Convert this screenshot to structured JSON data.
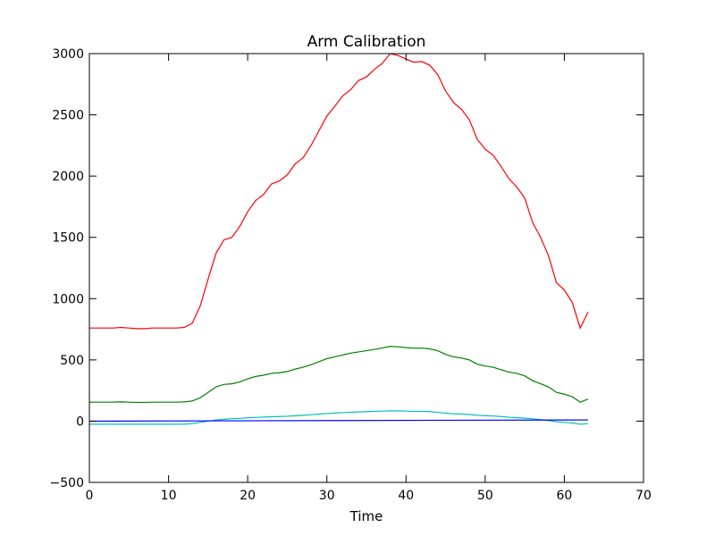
{
  "chart_data": {
    "type": "line",
    "title": "Arm Calibration",
    "xlabel": "Time",
    "ylabel": "",
    "xlim": [
      0,
      70
    ],
    "ylim": [
      -500,
      3000
    ],
    "xticks": [
      0,
      10,
      20,
      30,
      40,
      50,
      60,
      70
    ],
    "yticks": [
      -500,
      0,
      500,
      1000,
      1500,
      2000,
      2500,
      3000
    ],
    "tick_labels_x": [
      "0",
      "10",
      "20",
      "30",
      "40",
      "50",
      "60",
      "70"
    ],
    "tick_labels_y": [
      "−500",
      "0",
      "500",
      "1000",
      "1500",
      "2000",
      "2500",
      "3000"
    ],
    "grid": false,
    "legend": "none",
    "series": [
      {
        "color": "#ff0000",
        "x": [
          0,
          1,
          2,
          3,
          4,
          5,
          6,
          7,
          8,
          9,
          10,
          11,
          12,
          13,
          14,
          15,
          16,
          17,
          18,
          19,
          20,
          21,
          22,
          23,
          24,
          25,
          26,
          27,
          28,
          29,
          30,
          31,
          32,
          33,
          34,
          35,
          36,
          37,
          38,
          39,
          40,
          41,
          42,
          43,
          44,
          45,
          46,
          47,
          48,
          49,
          50,
          51,
          52,
          53,
          54,
          55,
          56,
          57,
          58,
          59,
          60,
          61,
          62,
          63
        ],
        "values": [
          760,
          760,
          760,
          760,
          765,
          760,
          755,
          755,
          760,
          760,
          760,
          760,
          765,
          800,
          940,
          1160,
          1370,
          1480,
          1500,
          1590,
          1710,
          1800,
          1850,
          1935,
          1960,
          2010,
          2100,
          2150,
          2250,
          2370,
          2490,
          2570,
          2655,
          2705,
          2780,
          2810,
          2870,
          2920,
          3000,
          2985,
          2955,
          2930,
          2935,
          2905,
          2830,
          2695,
          2600,
          2545,
          2460,
          2300,
          2220,
          2170,
          2080,
          1980,
          1910,
          1820,
          1620,
          1500,
          1350,
          1130,
          1070,
          970,
          760,
          890
        ]
      },
      {
        "color": "#008000",
        "x": [
          0,
          1,
          2,
          3,
          4,
          5,
          6,
          7,
          8,
          9,
          10,
          11,
          12,
          13,
          14,
          15,
          16,
          17,
          18,
          19,
          20,
          21,
          22,
          23,
          24,
          25,
          26,
          27,
          28,
          29,
          30,
          31,
          32,
          33,
          34,
          35,
          36,
          37,
          38,
          39,
          40,
          41,
          42,
          43,
          44,
          45,
          46,
          47,
          48,
          49,
          50,
          51,
          52,
          53,
          54,
          55,
          56,
          57,
          58,
          59,
          60,
          61,
          62,
          63
        ],
        "values": [
          155,
          155,
          155,
          155,
          157,
          155,
          153,
          153,
          155,
          155,
          155,
          155,
          157,
          165,
          190,
          235,
          280,
          300,
          305,
          320,
          345,
          365,
          375,
          390,
          395,
          405,
          425,
          440,
          460,
          485,
          510,
          525,
          540,
          555,
          565,
          575,
          585,
          598,
          610,
          607,
          600,
          595,
          596,
          590,
          575,
          545,
          525,
          515,
          500,
          465,
          450,
          440,
          420,
          400,
          390,
          370,
          330,
          305,
          280,
          235,
          220,
          200,
          155,
          180
        ]
      },
      {
        "color": "#00bfbf",
        "x": [
          0,
          1,
          2,
          3,
          4,
          5,
          6,
          7,
          8,
          9,
          10,
          11,
          12,
          13,
          14,
          15,
          16,
          17,
          18,
          19,
          20,
          21,
          22,
          23,
          24,
          25,
          26,
          27,
          28,
          29,
          30,
          31,
          32,
          33,
          34,
          35,
          36,
          37,
          38,
          39,
          40,
          41,
          42,
          43,
          44,
          45,
          46,
          47,
          48,
          49,
          50,
          51,
          52,
          53,
          54,
          55,
          56,
          57,
          58,
          59,
          60,
          61,
          62,
          63
        ],
        "values": [
          -25,
          -25,
          -25,
          -25,
          -25,
          -25,
          -25,
          -25,
          -25,
          -25,
          -25,
          -25,
          -25,
          -20,
          -10,
          0,
          10,
          15,
          20,
          22,
          28,
          30,
          33,
          36,
          38,
          40,
          44,
          48,
          52,
          58,
          62,
          66,
          70,
          73,
          75,
          78,
          80,
          82,
          84,
          84,
          82,
          80,
          80,
          78,
          72,
          65,
          60,
          58,
          54,
          48,
          45,
          42,
          38,
          32,
          28,
          25,
          18,
          12,
          5,
          -5,
          -10,
          -15,
          -25,
          -20
        ]
      },
      {
        "color": "#0000ff",
        "x": [
          0,
          63
        ],
        "values": [
          0,
          10
        ]
      }
    ]
  }
}
